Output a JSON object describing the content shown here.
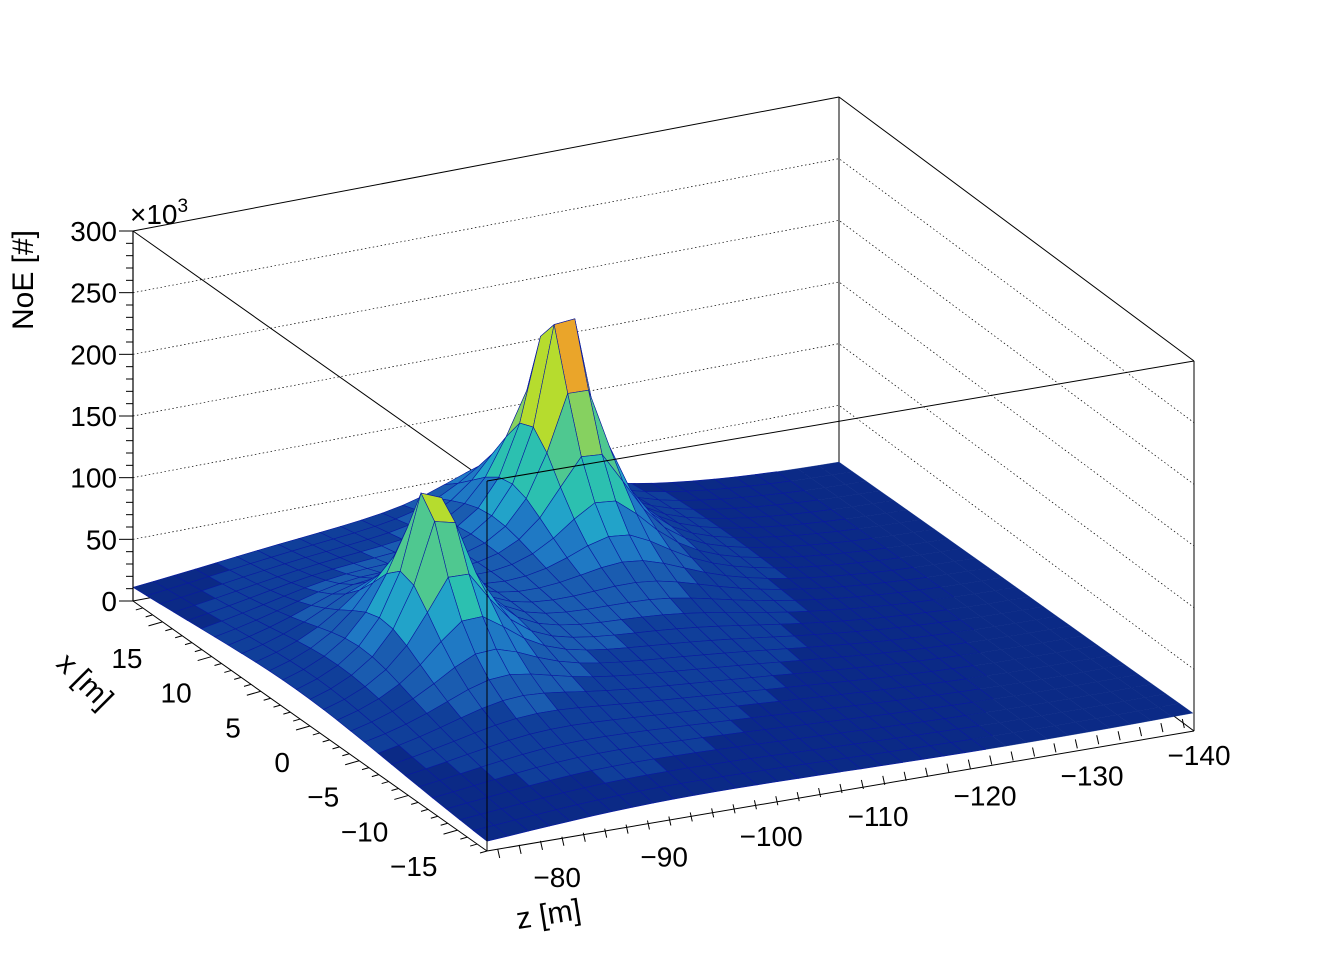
{
  "chart_data": {
    "type": "surface",
    "title": "",
    "xlabel": "z [m]",
    "ylabel": "x [m]",
    "zlabel": "NoE [#]",
    "z_multiplier": "×10",
    "z_multiplier_exp": "3",
    "xlim": [
      -74,
      -140
    ],
    "ylim": [
      -18,
      18
    ],
    "zlim": [
      0,
      300
    ],
    "x_ticks": [
      {
        "value": -80,
        "label": "−80"
      },
      {
        "value": -90,
        "label": "−90"
      },
      {
        "value": -100,
        "label": "−100"
      },
      {
        "value": -110,
        "label": "−110"
      },
      {
        "value": -120,
        "label": "−120"
      },
      {
        "value": -130,
        "label": "−130"
      },
      {
        "value": -140,
        "label": "−140"
      }
    ],
    "y_ticks": [
      {
        "value": 15,
        "label": "15"
      },
      {
        "value": 10,
        "label": "10"
      },
      {
        "value": 5,
        "label": "5"
      },
      {
        "value": 0,
        "label": "0"
      },
      {
        "value": -5,
        "label": "−5"
      },
      {
        "value": -10,
        "label": "−10"
      },
      {
        "value": -15,
        "label": "−15"
      }
    ],
    "z_ticks": [
      {
        "value": 0,
        "label": "0"
      },
      {
        "value": 50,
        "label": "50"
      },
      {
        "value": 100,
        "label": "100"
      },
      {
        "value": 150,
        "label": "150"
      },
      {
        "value": 200,
        "label": "200"
      },
      {
        "value": 250,
        "label": "250"
      },
      {
        "value": 300,
        "label": "300"
      }
    ],
    "grid": true,
    "colormap": [
      "#0b2a86",
      "#103f9a",
      "#1a5cb0",
      "#1f79c4",
      "#22a3c9",
      "#2cc0b0",
      "#4fc890",
      "#86d160",
      "#b6dc2e",
      "#e0d630",
      "#eaa52a",
      "#e1742a",
      "#cc3a1e",
      "#a40f12"
    ],
    "peaks": [
      {
        "z": -86.5,
        "x": 1.0,
        "height": 172
      },
      {
        "z": -108.0,
        "x": 11.5,
        "height": 250
      }
    ],
    "background_level": 3
  }
}
